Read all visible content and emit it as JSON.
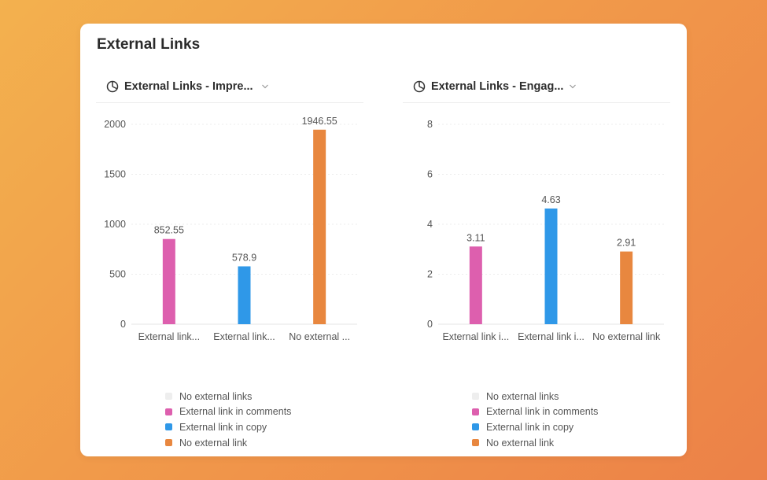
{
  "card": {
    "title": "External Links"
  },
  "colors": {
    "none": "#eeeeee",
    "comments": "#dd5fae",
    "copy": "#2f98e8",
    "no_external": "#e8873f"
  },
  "panels": [
    {
      "title": "External Links - Impre...",
      "icon": "pie-chart-icon",
      "legend": [
        {
          "label": "No external links",
          "color": "#eeeeee"
        },
        {
          "label": "External link in comments",
          "color": "#dd5fae"
        },
        {
          "label": "External link in copy",
          "color": "#2f98e8"
        },
        {
          "label": "No external link",
          "color": "#e8873f"
        }
      ]
    },
    {
      "title": "External Links - Engag...",
      "icon": "pie-chart-icon",
      "legend": [
        {
          "label": "No external links",
          "color": "#eeeeee"
        },
        {
          "label": "External link in comments",
          "color": "#dd5fae"
        },
        {
          "label": "External link in copy",
          "color": "#2f98e8"
        },
        {
          "label": "No external link",
          "color": "#e8873f"
        }
      ]
    }
  ],
  "chart_data": [
    {
      "type": "bar",
      "title": "External Links - Impre...",
      "categories": [
        "External link...",
        "External link...",
        "No external ..."
      ],
      "values": [
        852.55,
        578.9,
        1946.55
      ],
      "value_labels": [
        "852.55",
        "578.9",
        "1946.55"
      ],
      "colors": [
        "#dd5fae",
        "#2f98e8",
        "#e8873f"
      ],
      "yticks": [
        0,
        500,
        1000,
        1500,
        2000
      ],
      "ylim": [
        0,
        2000
      ],
      "grid": true,
      "legend_position": "bottom"
    },
    {
      "type": "bar",
      "title": "External Links - Engag...",
      "categories": [
        "External link i...",
        "External link i...",
        "No external link"
      ],
      "values": [
        3.11,
        4.63,
        2.91
      ],
      "value_labels": [
        "3.11",
        "4.63",
        "2.91"
      ],
      "colors": [
        "#dd5fae",
        "#2f98e8",
        "#e8873f"
      ],
      "yticks": [
        0,
        2,
        4,
        6,
        8
      ],
      "ylim": [
        0,
        8
      ],
      "grid": true,
      "legend_position": "bottom"
    }
  ]
}
